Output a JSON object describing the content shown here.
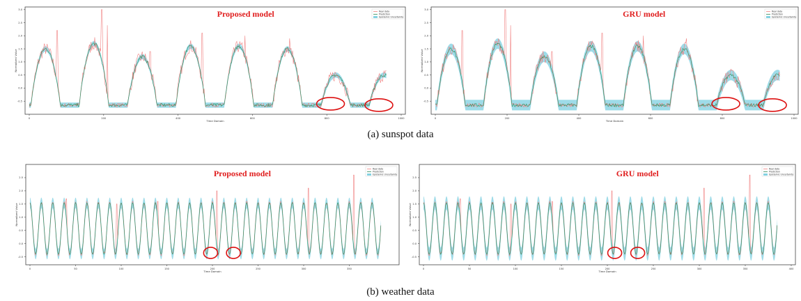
{
  "captions": {
    "a": "(a) sunspot data",
    "b": "(b) weather data"
  },
  "legend_labels": [
    "Real data",
    "Prediction",
    "Epistemic Uncertainty"
  ],
  "colors": {
    "real": "#f08080",
    "prediction": "#2e8b57",
    "band": "#7ecfe0",
    "title": "#e02020",
    "circle": "#dd1111"
  },
  "chart_data": [
    {
      "type": "line",
      "title": "Proposed model",
      "dataset": "sunspot",
      "xlabel": "Time Domain",
      "ylabel": "Normalized Value",
      "xlim": [
        0,
        1000
      ],
      "ylim": [
        -1.0,
        3.1
      ],
      "xticks": [
        0,
        200,
        400,
        600,
        800,
        1000
      ],
      "yticks": [
        -0.5,
        0.0,
        0.5,
        1.0,
        1.5,
        2.0,
        2.5,
        3.0
      ],
      "cycle": {
        "count": 7,
        "period": 130,
        "start": 5,
        "peaks": [
          1.5,
          1.7,
          1.2,
          1.6,
          1.6,
          1.5,
          0.5
        ],
        "trough": -0.65,
        "noise": 0.25
      },
      "real_spikes": [
        [
          75,
          2.2
        ],
        [
          195,
          3.0
        ],
        [
          210,
          2.4
        ],
        [
          325,
          1.4
        ],
        [
          465,
          2.1
        ],
        [
          580,
          2.0
        ],
        [
          700,
          1.9
        ]
      ],
      "band_halfwidth": 0.1,
      "circles": [
        [
          810,
          -0.6
        ],
        [
          940,
          -0.65
        ]
      ],
      "legend_position": "top-right"
    },
    {
      "type": "line",
      "title": "GRU model",
      "dataset": "sunspot",
      "xlabel": "Time Domain",
      "ylabel": "Normalized Value",
      "xlim": [
        0,
        1000
      ],
      "ylim": [
        -1.0,
        3.1
      ],
      "xticks": [
        0,
        200,
        400,
        600,
        800,
        1000
      ],
      "yticks": [
        -0.5,
        0.0,
        0.5,
        1.0,
        1.5,
        2.0,
        2.5,
        3.0
      ],
      "cycle": {
        "count": 7,
        "period": 130,
        "start": 5,
        "peaks": [
          1.5,
          1.7,
          1.2,
          1.6,
          1.6,
          1.5,
          0.5
        ],
        "trough": -0.65,
        "noise": 0.25
      },
      "real_spikes": [
        [
          75,
          2.2
        ],
        [
          195,
          3.0
        ],
        [
          210,
          2.4
        ],
        [
          325,
          1.4
        ],
        [
          465,
          2.1
        ],
        [
          580,
          2.0
        ],
        [
          700,
          1.9
        ]
      ],
      "band_halfwidth": 0.2,
      "circles": [
        [
          810,
          -0.6
        ],
        [
          940,
          -0.65
        ]
      ],
      "legend_position": "top-right"
    },
    {
      "type": "line",
      "title": "Proposed model",
      "dataset": "weather",
      "xlabel": "Time Domain",
      "ylabel": "Normalized Value",
      "xlim": [
        0,
        400
      ],
      "ylim": [
        -0.8,
        3.0
      ],
      "xticks": [
        0,
        50,
        100,
        150,
        200,
        250,
        300,
        350
      ],
      "yticks": [
        -0.5,
        0.0,
        0.5,
        1.0,
        1.5,
        2.0,
        2.5
      ],
      "oscillation": {
        "period": 12.5,
        "high": 1.55,
        "low": -0.4
      },
      "real_spikes": [
        [
          40,
          1.7
        ],
        [
          95,
          1.5
        ],
        [
          140,
          1.6
        ],
        [
          205,
          2.0
        ],
        [
          305,
          2.1
        ],
        [
          355,
          2.6
        ]
      ],
      "band_halfwidth": 0.2,
      "circles": [
        [
          198,
          -0.35
        ],
        [
          223,
          -0.35
        ]
      ],
      "legend_position": "top-right"
    },
    {
      "type": "line",
      "title": "GRU model",
      "dataset": "weather",
      "xlabel": "Time Domain",
      "ylabel": "Normalized Value",
      "xlim": [
        0,
        400
      ],
      "ylim": [
        -0.8,
        3.0
      ],
      "xticks": [
        0,
        50,
        100,
        150,
        200,
        250,
        300,
        350,
        400
      ],
      "yticks": [
        -0.5,
        0.0,
        0.5,
        1.0,
        1.5,
        2.0,
        2.5
      ],
      "oscillation": {
        "period": 12.5,
        "high": 1.55,
        "low": -0.4
      },
      "real_spikes": [
        [
          40,
          1.7
        ],
        [
          95,
          1.5
        ],
        [
          140,
          1.6
        ],
        [
          205,
          2.0
        ],
        [
          305,
          2.1
        ],
        [
          355,
          2.6
        ]
      ],
      "band_halfwidth": 0.25,
      "circles": [
        [
          208,
          -0.35
        ],
        [
          233,
          -0.35
        ]
      ],
      "legend_position": "top-right"
    }
  ]
}
